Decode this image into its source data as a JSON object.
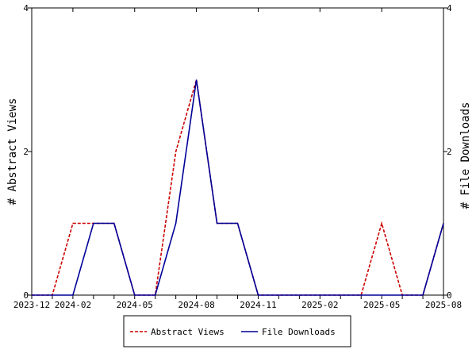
{
  "chart_data": {
    "type": "line",
    "x": [
      "2023-12",
      "2024-01",
      "2024-02",
      "2024-03",
      "2024-04",
      "2024-05",
      "2024-06",
      "2024-07",
      "2024-08",
      "2024-09",
      "2024-10",
      "2024-11",
      "2024-12",
      "2025-01",
      "2025-02",
      "2025-03",
      "2025-04",
      "2025-05",
      "2025-06",
      "2025-07",
      "2025-08"
    ],
    "xticks": [
      "2023-12",
      "2024-02",
      "2024-05",
      "2024-08",
      "2024-11",
      "2025-02",
      "2025-05",
      "2025-08"
    ],
    "series": [
      {
        "name": "Abstract Views",
        "color": "#cc0000",
        "style": "dashed",
        "axis": "left",
        "values": [
          0,
          0,
          1,
          1,
          1,
          0,
          0,
          2,
          3,
          1,
          1,
          0,
          0,
          0,
          0,
          0,
          0,
          1,
          0,
          0,
          1
        ]
      },
      {
        "name": "File Downloads",
        "color": "#000099",
        "style": "solid",
        "axis": "left",
        "values": [
          0,
          0,
          0,
          1,
          1,
          0,
          0,
          1,
          3,
          1,
          1,
          0,
          0,
          0,
          0,
          0,
          0,
          0,
          0,
          0,
          1
        ]
      }
    ],
    "ylabel": "# Abstract Views",
    "ylabel_right": "# File Downloads",
    "ylim": [
      0,
      4
    ],
    "yticks": [
      "0",
      "2",
      "4"
    ],
    "legend_position": "bottom-center",
    "grid": false
  }
}
